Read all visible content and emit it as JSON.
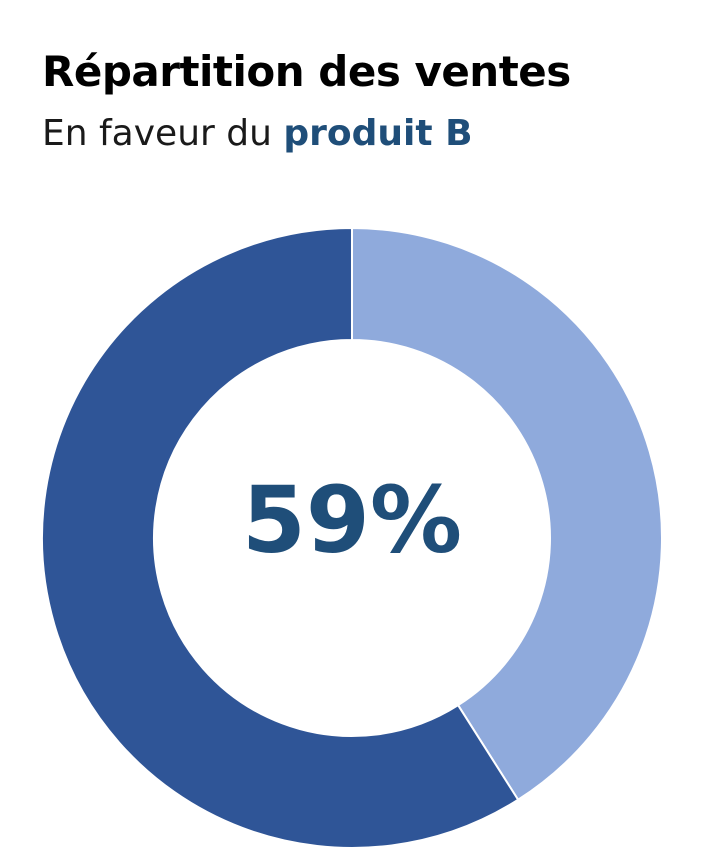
{
  "header": {
    "title": "Répartition des ventes",
    "subtitle_prefix": "En faveur du ",
    "subtitle_highlight": "produit B"
  },
  "chart_data": {
    "type": "pie",
    "title": "Répartition des ventes",
    "subtitle": "En faveur du produit B",
    "center_label": "59%",
    "slices": [
      {
        "value": 59,
        "color": "#2f5597"
      },
      {
        "value": 41,
        "color": "#8faadc"
      }
    ]
  },
  "colors": {
    "highlight_text": "#1f4e79",
    "center_text": "#1f4e79"
  }
}
